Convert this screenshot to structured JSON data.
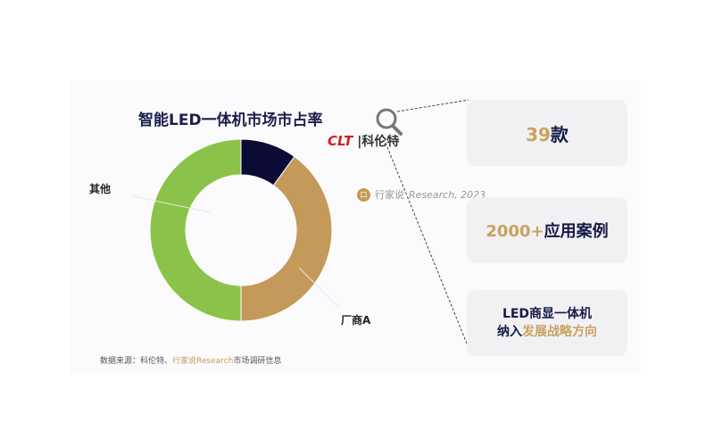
{
  "chart_data": {
    "type": "pie",
    "title": "智能LED一体机市场市占率",
    "donut": true,
    "slices": [
      {
        "label": "",
        "value": 10,
        "color": "#0b0b35"
      },
      {
        "label": "厂商A",
        "value": 40,
        "color": "#c49a5a"
      },
      {
        "label": "其他",
        "value": 50,
        "color": "#8bc34a"
      }
    ]
  },
  "source": {
    "prefix": "数据来源：科伦特、",
    "highlight": "行家说Research",
    "suffix": "市场调研信息"
  },
  "logo": {
    "brand": "CLT",
    "name": "科伦特"
  },
  "watermark": {
    "cn": "行家说",
    "text": "Research, 2023"
  },
  "cards": [
    {
      "gold": "39",
      "dark": "款"
    },
    {
      "gold": "2000+",
      "dark": "应用案例"
    },
    {
      "line1": "LED商显一体机",
      "line2_dark": "纳入",
      "line2_gold": "发展战略方向"
    }
  ],
  "icons": [
    "magnifier-icon"
  ]
}
